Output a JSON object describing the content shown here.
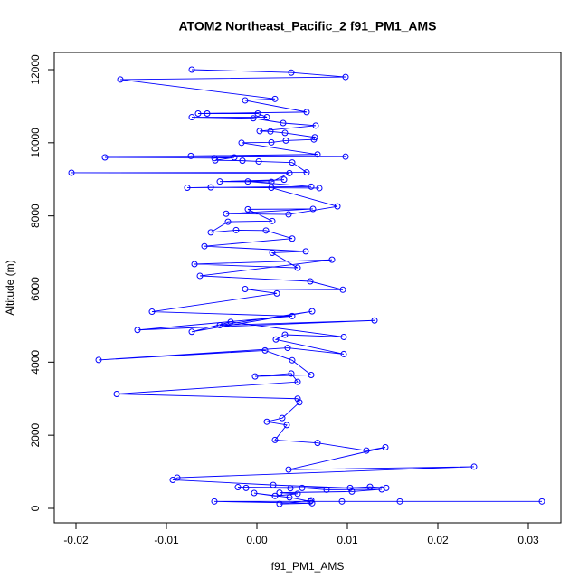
{
  "chart_data": {
    "type": "line",
    "title": "ATOM2 Northeast_Pacific_2 f91_PM1_AMS",
    "x_label": "f91_PM1_AMS",
    "y_label": "Altitude (m)",
    "color": "#0000ff",
    "xlim": [
      -0.0224,
      0.0336
    ],
    "ylim": [
      -396,
      12470
    ],
    "xticks": [
      -0.02,
      -0.01,
      {
        "value": 0,
        "label": "0.00"
      },
      0.01,
      0.02,
      0.03
    ],
    "yticks": [
      0,
      2000,
      4000,
      6000,
      8000,
      10000,
      12000
    ],
    "x": [
      -0.0072,
      0.0038,
      0.0098,
      -0.0151,
      0.002,
      -0.0013,
      0.0055,
      -0.0065,
      -0.0055,
      0.0001,
      0.0011,
      -0.0072,
      -0.0004,
      0.0029,
      0.0065,
      0.0003,
      0.0015,
      0.0031,
      0.0064,
      0.0063,
      0.0032,
      0.0016,
      -0.0017,
      0.0067,
      -0.0073,
      0.0098,
      -0.0168,
      -0.0047,
      -0.0025,
      -0.0046,
      -0.0016,
      0.0002,
      0.0039,
      0.0055,
      -0.0205,
      0.0036,
      0.0016,
      -0.0041,
      0.003,
      -0.001,
      0.006,
      -0.0077,
      -0.0051,
      0.0069,
      0.0016,
      0.0089,
      0.0035,
      -0.0034,
      0.0062,
      -0.001,
      0.0017,
      -0.0032,
      -0.0051,
      -0.0023,
      0.001,
      0.0039,
      -0.0058,
      0.0054,
      0.0017,
      0.0045,
      -0.0069,
      0.0083,
      -0.0063,
      0.0059,
      0.0095,
      -0.0013,
      0.0022,
      -0.0116,
      0.0039,
      -0.0132,
      0.013,
      -0.0041,
      0.0061,
      -0.0072,
      -0.0029,
      0.0096,
      0.0031,
      0.0021,
      0.0096,
      0.0034,
      -0.0175,
      0.0009,
      0.0039,
      0.006,
      -0.0002,
      0.0038,
      0.0045,
      -0.0155,
      0.0045,
      0.0047,
      0.0028,
      0.0011,
      0.0033,
      0.002,
      0.0067,
      0.0121,
      0.0142,
      0.0035,
      0.024,
      -0.0088,
      -0.0093,
      0.0018,
      0.0103,
      0.0125,
      0.0143,
      -0.0021,
      -0.0012,
      0.0037,
      0.005,
      0.0077,
      0.0138,
      0.0105,
      0.0025,
      0.0045,
      0.002,
      -0.0003,
      0.0036,
      0.0059,
      0.0315,
      0.0158,
      0.0094,
      -0.0047,
      0.0061,
      0.0025,
      0.006
    ],
    "values": [
      12000,
      11920,
      11800,
      11730,
      11200,
      11160,
      10840,
      10800,
      10800,
      10800,
      10700,
      10700,
      10670,
      10540,
      10470,
      10320,
      10310,
      10270,
      10150,
      10090,
      10060,
      10010,
      10000,
      9680,
      9640,
      9620,
      9600,
      9580,
      9600,
      9520,
      9510,
      9490,
      9460,
      9190,
      9180,
      9170,
      8930,
      8940,
      8990,
      8940,
      8800,
      8770,
      8780,
      8760,
      8770,
      8260,
      8040,
      8060,
      8190,
      8180,
      7860,
      7840,
      7550,
      7610,
      7600,
      7380,
      7170,
      7030,
      6990,
      6580,
      6680,
      6800,
      6360,
      6210,
      5980,
      6000,
      5880,
      5380,
      5260,
      4880,
      5140,
      5010,
      5390,
      4830,
      5100,
      4690,
      4750,
      4620,
      4220,
      4390,
      4060,
      4320,
      4050,
      3650,
      3610,
      3690,
      3460,
      3130,
      3000,
      2900,
      2470,
      2370,
      2280,
      1870,
      1790,
      1580,
      1670,
      1060,
      1140,
      840,
      780,
      640,
      560,
      590,
      560,
      580,
      560,
      550,
      560,
      510,
      520,
      460,
      430,
      400,
      340,
      420,
      300,
      190,
      190,
      190,
      190,
      190,
      140,
      120,
      220
    ]
  }
}
